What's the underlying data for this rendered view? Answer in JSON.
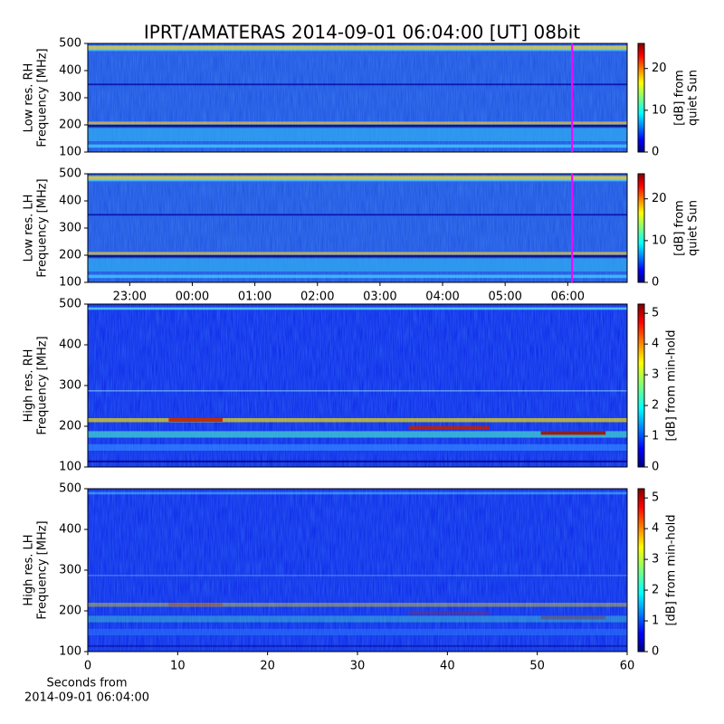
{
  "title": "IPRT/AMATERAS 2014-09-01 06:04:00 [UT]   08bit",
  "chart_data": [
    {
      "type": "spectrogram",
      "ylabel": [
        "Low res. RH",
        "Frequency [MHz]"
      ],
      "ylim": [
        100,
        500
      ],
      "yticks": [
        100,
        200,
        300,
        400,
        500
      ],
      "xlim": [
        -1.67,
        6.95
      ],
      "marker_x": 6.07,
      "marker_color": "#ff00ff",
      "colorbar_label": [
        "[dB] from",
        "quiet Sun"
      ],
      "clim": [
        0,
        26
      ],
      "cticks": [
        0,
        10,
        20
      ]
    },
    {
      "type": "spectrogram",
      "ylabel": [
        "Low res. LH",
        "Frequency [MHz]"
      ],
      "ylim": [
        100,
        500
      ],
      "yticks": [
        100,
        200,
        300,
        400,
        500
      ],
      "xlim": [
        -1.67,
        6.95
      ],
      "xticks": [
        {
          "value": -1,
          "label": "23:00"
        },
        {
          "value": 0,
          "label": "00:00"
        },
        {
          "value": 1,
          "label": "01:00"
        },
        {
          "value": 2,
          "label": "02:00"
        },
        {
          "value": 3,
          "label": "03:00"
        },
        {
          "value": 4,
          "label": "04:00"
        },
        {
          "value": 5,
          "label": "05:00"
        },
        {
          "value": 6,
          "label": "06:00"
        }
      ],
      "marker_x": 6.07,
      "marker_color": "#ff00ff",
      "colorbar_label": [
        "[dB] from",
        "quiet Sun"
      ],
      "clim": [
        0,
        26
      ],
      "cticks": [
        0,
        10,
        20
      ]
    },
    {
      "type": "spectrogram",
      "ylabel": [
        "High res. RH",
        "Frequency [MHz]"
      ],
      "ylim": [
        100,
        500
      ],
      "yticks": [
        100,
        200,
        300,
        400,
        500
      ],
      "xlim": [
        0,
        60
      ],
      "colorbar_label": [
        "[dB] from min-hold"
      ],
      "clim": [
        0,
        5.3
      ],
      "cticks": [
        0,
        1,
        2,
        3,
        4,
        5
      ]
    },
    {
      "type": "spectrogram",
      "ylabel": [
        "High res. LH",
        "Frequency [MHz]"
      ],
      "ylim": [
        100,
        500
      ],
      "yticks": [
        100,
        200,
        300,
        400,
        500
      ],
      "xlim": [
        0,
        60
      ],
      "xticks": [
        0,
        10,
        20,
        30,
        40,
        50,
        60
      ],
      "xlabel": [
        "Seconds from",
        "2014-09-01 06:04:00"
      ],
      "colorbar_label": [
        "[dB] from min-hold"
      ],
      "clim": [
        0,
        5.3
      ],
      "cticks": [
        0,
        1,
        2,
        3,
        4,
        5
      ]
    }
  ]
}
